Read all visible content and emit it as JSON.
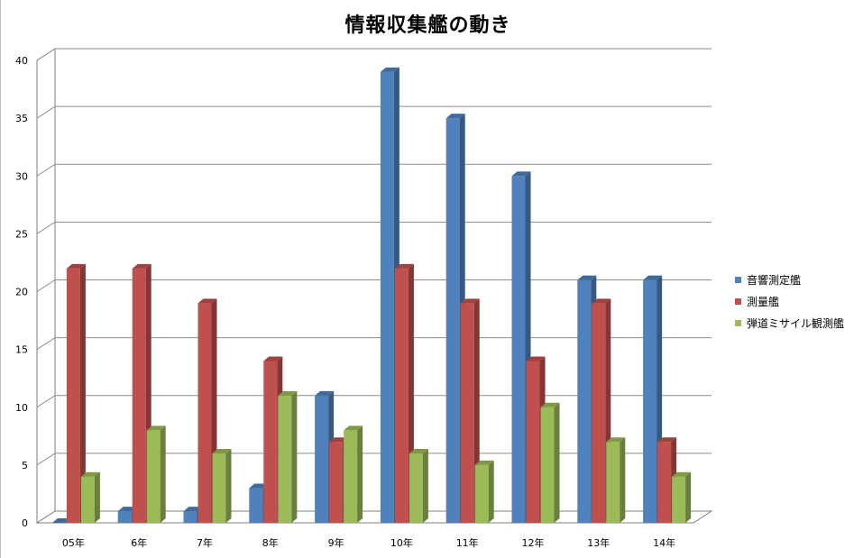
{
  "chart_data": {
    "type": "bar",
    "title": "情報収集艦の動き",
    "xlabel": "",
    "ylabel": "",
    "ylim": [
      0,
      40
    ],
    "yticks": [
      "0",
      "5",
      "10",
      "15",
      "20",
      "25",
      "30",
      "35",
      "40"
    ],
    "categories": [
      "05年",
      "6年",
      "7年",
      "8年",
      "9年",
      "10年",
      "11年",
      "12年",
      "13年",
      "14年"
    ],
    "series": [
      {
        "name": "音響測定艦",
        "color": "#4f81bd",
        "values": [
          0,
          1,
          1,
          3,
          11,
          39,
          35,
          30,
          21,
          21
        ]
      },
      {
        "name": "測量艦",
        "color": "#c0504d",
        "values": [
          22,
          22,
          19,
          14,
          7,
          22,
          19,
          14,
          19,
          7
        ]
      },
      {
        "name": "弾道ミサイル観測艦",
        "color": "#9bbb59",
        "values": [
          4,
          8,
          6,
          11,
          8,
          6,
          5,
          10,
          7,
          4
        ]
      }
    ],
    "grid": true,
    "legend_position": "right"
  }
}
